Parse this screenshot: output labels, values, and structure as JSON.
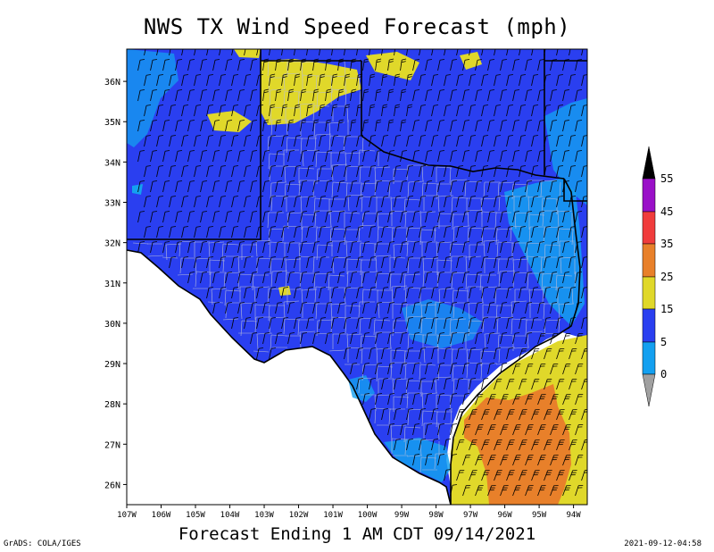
{
  "title": "NWS TX Wind Speed Forecast (mph)",
  "subtitle": "Forecast Ending 1 AM CDT 09/14/2021",
  "credit": "GrADS: COLA/IGES",
  "timestamp": "2021-09-12-04:58",
  "map": {
    "lon_range": [
      -107,
      -93.6
    ],
    "lat_range": [
      25.5,
      36.8
    ],
    "lat_ticks": [
      {
        "value": 36,
        "label": "36N"
      },
      {
        "value": 35,
        "label": "35N"
      },
      {
        "value": 34,
        "label": "34N"
      },
      {
        "value": 33,
        "label": "33N"
      },
      {
        "value": 32,
        "label": "32N"
      },
      {
        "value": 31,
        "label": "31N"
      },
      {
        "value": 30,
        "label": "30N"
      },
      {
        "value": 29,
        "label": "29N"
      },
      {
        "value": 28,
        "label": "28N"
      },
      {
        "value": 27,
        "label": "27N"
      },
      {
        "value": 26,
        "label": "26N"
      }
    ],
    "lon_ticks": [
      {
        "value": -107,
        "label": "107W"
      },
      {
        "value": -106,
        "label": "106W"
      },
      {
        "value": -105,
        "label": "105W"
      },
      {
        "value": -104,
        "label": "104W"
      },
      {
        "value": -103,
        "label": "103W"
      },
      {
        "value": -102,
        "label": "102W"
      },
      {
        "value": -101,
        "label": "101W"
      },
      {
        "value": -100,
        "label": "100W"
      },
      {
        "value": -99,
        "label": "99W"
      },
      {
        "value": -98,
        "label": "98W"
      },
      {
        "value": -97,
        "label": "97W"
      },
      {
        "value": -96,
        "label": "96W"
      },
      {
        "value": -95,
        "label": "95W"
      },
      {
        "value": -94,
        "label": "94W"
      }
    ]
  },
  "legend": {
    "labels": [
      "55",
      "45",
      "35",
      "25",
      "15",
      "5",
      "0"
    ],
    "colors": {
      "over": "#000000",
      "c45_55": "#9a10c8",
      "c35_45": "#f03c3c",
      "c25_35": "#e8802a",
      "c15_25": "#e0d82a",
      "c5_15": "#2a3ff0",
      "c0_5": "#14a0f0",
      "under": "#a0a0a0"
    }
  },
  "field_colors": {
    "ocean_outside": "#ffffff",
    "calm": "#14a0f0",
    "light": "#2a3ff0",
    "moderate": "#e0d82a",
    "strong": "#e8802a"
  }
}
